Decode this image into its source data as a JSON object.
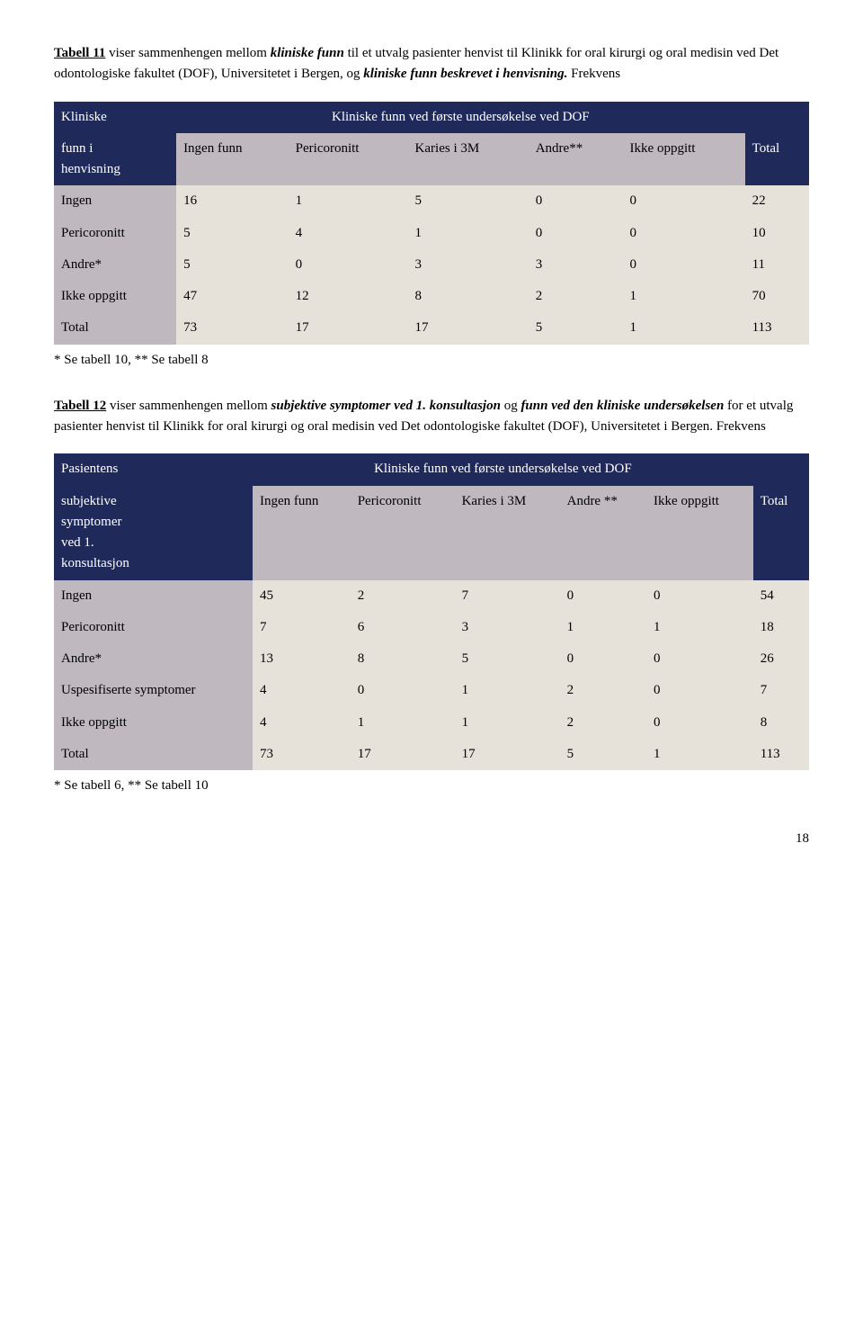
{
  "intro1": {
    "lead_label": "Tabell 11",
    "part1": " viser sammenhengen mellom ",
    "italic1": "kliniske funn",
    "part2": " til et utvalg pasienter henvist til Klinikk for oral kirurgi og oral medisin ved Det odontologiske fakultet (DOF), Universitetet i Bergen, og ",
    "italic2": "kliniske funn beskrevet i henvisning.",
    "part3": " Frekvens"
  },
  "table1": {
    "header_left_l1": "Kliniske",
    "header_left_l2": "funn i",
    "header_left_l3": "henvisning",
    "header_span": "Kliniske funn ved første undersøkelse ved DOF",
    "header_right_empty": "",
    "sub": [
      "Ingen funn",
      "Pericoronitt",
      "Karies i 3M",
      "Andre**",
      "Ikke oppgitt",
      "Total"
    ],
    "rows": [
      {
        "label": "Ingen",
        "cells": [
          "16",
          "1",
          "5",
          "0",
          "0"
        ],
        "total": "22"
      },
      {
        "label": "Pericoronitt",
        "cells": [
          "5",
          "4",
          "1",
          "0",
          "0"
        ],
        "total": "10"
      },
      {
        "label": "Andre*",
        "cells": [
          "5",
          "0",
          "3",
          "3",
          "0"
        ],
        "total": "11"
      },
      {
        "label": "Ikke oppgitt",
        "cells": [
          "47",
          "12",
          "8",
          "2",
          "1"
        ],
        "total": "70"
      }
    ],
    "total_label": "Total",
    "total_cells": [
      "73",
      "17",
      "17",
      "5",
      "1"
    ],
    "grand_total": "113",
    "footnote": "* Se tabell 10, ** Se tabell 8"
  },
  "intro2": {
    "lead_label": "Tabell 12",
    "part1": " viser sammenhengen mellom ",
    "italic1": "subjektive symptomer ved 1. konsultasjon",
    "part2": " og ",
    "italic2": "funn ved den kliniske undersøkelsen",
    "part3": " for et utvalg pasienter henvist til Klinikk for oral kirurgi og oral medisin ved Det odontologiske fakultet (DOF), Universitetet i Bergen. Frekvens"
  },
  "table2": {
    "header_left_l1": "Pasientens",
    "header_left_l2": "subjektive",
    "header_left_l3": "symptomer",
    "header_left_l4": "ved 1.",
    "header_left_l5": "konsultasjon",
    "header_span": "Kliniske funn ved første undersøkelse ved DOF",
    "sub": [
      "Ingen funn",
      "Pericoronitt",
      "Karies i 3M",
      "Andre **",
      "Ikke oppgitt",
      "Total"
    ],
    "rows": [
      {
        "label": "Ingen",
        "cells": [
          "45",
          "2",
          "7",
          "0",
          "0"
        ],
        "total": "54"
      },
      {
        "label": "Pericoronitt",
        "cells": [
          "7",
          "6",
          "3",
          "1",
          "1"
        ],
        "total": "18"
      },
      {
        "label": "Andre*",
        "cells": [
          "13",
          "8",
          "5",
          "0",
          "0"
        ],
        "total": "26"
      },
      {
        "label": "Uspesifiserte symptomer",
        "cells": [
          "4",
          "0",
          "1",
          "2",
          "0"
        ],
        "total": "7"
      },
      {
        "label": "Ikke oppgitt",
        "cells": [
          "4",
          "1",
          "1",
          "2",
          "0"
        ],
        "total": "8"
      }
    ],
    "total_label": "Total",
    "total_cells": [
      "73",
      "17",
      "17",
      "5",
      "1"
    ],
    "grand_total": "113",
    "footnote": "* Se tabell 6, ** Se tabell 10"
  },
  "page_number": "18",
  "colors": {
    "header_bg": "#1f2a5a",
    "header_fg": "#ffffff",
    "subhdr_bg": "#bfb8bf",
    "cell_bg": "#e6e2da",
    "page_bg": "#ffffff",
    "text": "#000000"
  }
}
